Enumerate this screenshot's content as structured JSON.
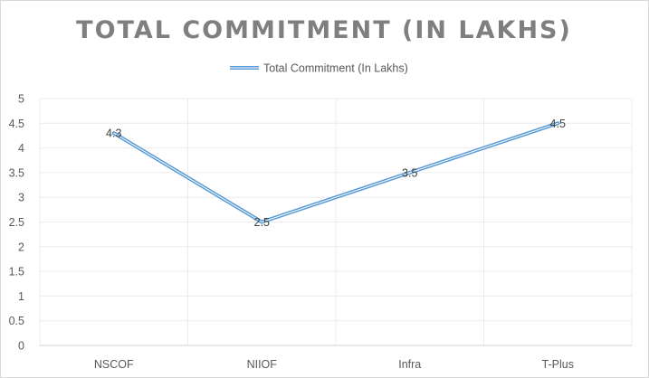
{
  "chart_data": {
    "type": "line",
    "title": "TOTAL COMMITMENT (IN LAKHS)",
    "categories": [
      "NSCOF",
      "NIIOF",
      "Infra",
      "T-Plus"
    ],
    "series": [
      {
        "name": "Total Commitment (In Lakhs)",
        "values": [
          4.3,
          2.5,
          3.5,
          4.5
        ],
        "color": "#5b9bd5"
      }
    ],
    "data_labels": [
      "4.3",
      "2.5",
      "3.5",
      "4.5"
    ],
    "ylim": [
      0,
      5
    ],
    "y_ticks": [
      "0",
      "0.5",
      "1",
      "1.5",
      "2",
      "2.5",
      "3",
      "3.5",
      "4",
      "4.5",
      "5"
    ],
    "xlabel": "",
    "ylabel": "",
    "grid": true,
    "legend_position": "top-center"
  }
}
